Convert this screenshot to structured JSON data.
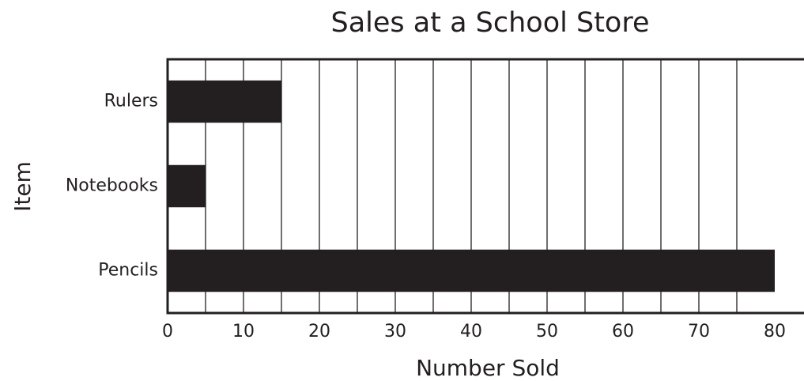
{
  "chart_data": {
    "type": "bar",
    "orientation": "horizontal",
    "title": "Sales at a School Store",
    "xlabel": "Number Sold",
    "ylabel": "Item",
    "categories": [
      "Rulers",
      "Notebooks",
      "Pencils"
    ],
    "values": [
      15,
      5,
      80
    ],
    "xlim": [
      0,
      80
    ],
    "xticks": [
      0,
      10,
      20,
      30,
      40,
      50,
      60,
      70,
      80
    ],
    "xtick_labels": [
      "0",
      "10",
      "20",
      "30",
      "40",
      "50",
      "60",
      "70",
      "80"
    ],
    "minor_gridline_step": 5,
    "grid": true,
    "legend": false,
    "bar_color": "#231f20",
    "text_color": "#231f20",
    "grid_color": "#231f20"
  }
}
